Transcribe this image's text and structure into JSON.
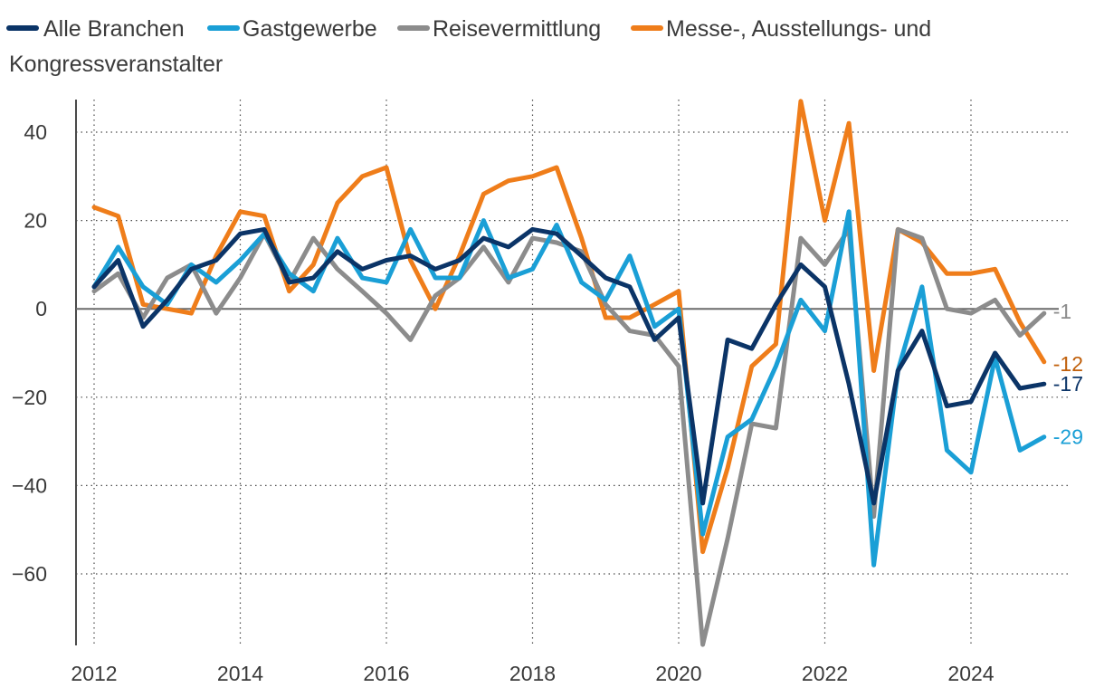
{
  "chart_data": {
    "type": "line",
    "title": "",
    "xlabel": "",
    "ylabel": "",
    "xlim": [
      2011.8,
      2025.4
    ],
    "ylim": [
      -76,
      47
    ],
    "yticks": [
      40,
      20,
      0,
      -20,
      -40,
      -60
    ],
    "ytick_labels": [
      "40",
      "20",
      "0",
      "−20",
      "−40",
      "−60"
    ],
    "xticks": [
      2012,
      2014,
      2016,
      2018,
      2020,
      2022,
      2024
    ],
    "xtick_labels": [
      "2012",
      "2014",
      "2016",
      "2018",
      "2020",
      "2022",
      "2024"
    ],
    "grid": "dotted",
    "legend_position": "top",
    "x": [
      2012.0,
      2012.33,
      2012.67,
      2013.0,
      2013.33,
      2013.67,
      2014.0,
      2014.33,
      2014.67,
      2015.0,
      2015.33,
      2015.67,
      2016.0,
      2016.33,
      2016.67,
      2017.0,
      2017.33,
      2017.67,
      2018.0,
      2018.33,
      2018.67,
      2019.0,
      2019.33,
      2019.67,
      2020.0,
      2020.33,
      2020.67,
      2021.0,
      2021.33,
      2021.67,
      2022.0,
      2022.33,
      2022.67,
      2023.0,
      2023.33,
      2023.67,
      2024.0,
      2024.33,
      2024.67,
      2025.0
    ],
    "series": [
      {
        "name": "Messe-, Ausstellungs- und Kongressveranstalter",
        "color": "#ef7d1a",
        "end_label": "-12",
        "end_label_color": "#c05f0a",
        "values": [
          23,
          21,
          1,
          0,
          -1,
          12,
          22,
          21,
          4,
          10,
          24,
          30,
          32,
          11,
          0,
          12,
          26,
          29,
          30,
          32,
          16,
          -2,
          -2,
          1,
          4,
          -55,
          -36,
          -13,
          -8,
          47,
          20,
          42,
          -14,
          18,
          15,
          8,
          8,
          9,
          -3,
          -12
        ]
      },
      {
        "name": "Reisevermittlung",
        "color": "#8c8c8c",
        "end_label": "-1",
        "end_label_color": "#8c8c8c",
        "values": [
          4,
          8,
          -2,
          7,
          10,
          -1,
          7,
          17,
          6,
          16,
          9,
          4,
          -1,
          -7,
          3,
          7,
          14,
          6,
          16,
          15,
          13,
          1,
          -5,
          -6,
          -13,
          -76,
          -52,
          -26,
          -27,
          16,
          10,
          18,
          -47,
          18,
          16,
          0,
          -1,
          2,
          -6,
          -1
        ]
      },
      {
        "name": "Gastgewerbe",
        "color": "#1a9fd6",
        "end_label": "-29",
        "end_label_color": "#1a9fd6",
        "values": [
          5,
          14,
          5,
          1,
          10,
          6,
          11,
          17,
          8,
          4,
          16,
          7,
          6,
          18,
          7,
          7,
          20,
          7,
          9,
          19,
          6,
          2,
          12,
          -4,
          0,
          -51,
          -29,
          -25,
          -13,
          2,
          -5,
          22,
          -58,
          -14,
          5,
          -32,
          -37,
          -11,
          -32,
          -29
        ]
      },
      {
        "name": "Alle Branchen",
        "color": "#0b3467",
        "end_label": "-17",
        "end_label_color": "#0b3467",
        "values": [
          5,
          11,
          -4,
          2,
          9,
          11,
          17,
          18,
          6,
          7,
          13,
          9,
          11,
          12,
          9,
          11,
          16,
          14,
          18,
          17,
          12,
          7,
          5,
          -7,
          -2,
          -44,
          -7,
          -9,
          1,
          10,
          5,
          -17,
          -44,
          -14,
          -5,
          -22,
          -21,
          -10,
          -18,
          -17
        ]
      }
    ]
  },
  "legend": {
    "items": [
      {
        "label": "Alle Branchen",
        "color": "#0b3467"
      },
      {
        "label": "Gastgewerbe",
        "color": "#1a9fd6"
      },
      {
        "label": "Reisevermittlung",
        "color": "#8c8c8c"
      },
      {
        "label": "Messe-, Ausstellungs- und",
        "color": "#ef7d1a"
      }
    ],
    "continuation": "Kongressveranstalter"
  }
}
